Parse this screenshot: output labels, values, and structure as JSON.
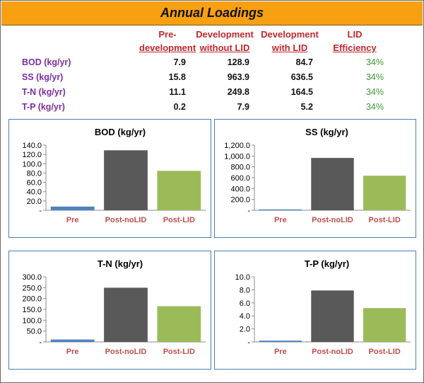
{
  "title": "Annual Loadings",
  "table": {
    "headers": [
      {
        "line1": "Pre-",
        "line2": "development"
      },
      {
        "line1": "Development",
        "line2": "without LID"
      },
      {
        "line1": "Development",
        "line2": "with LID"
      },
      {
        "line1": "LID",
        "line2": "Efficiency"
      }
    ],
    "rows": [
      {
        "label": "BOD (kg/yr)",
        "pre": "7.9",
        "no_lid": "128.9",
        "with_lid": "84.7",
        "efficiency": "34%"
      },
      {
        "label": "SS (kg/yr)",
        "pre": "15.8",
        "no_lid": "963.9",
        "with_lid": "636.5",
        "efficiency": "34%"
      },
      {
        "label": "T-N (kg/yr)",
        "pre": "11.1",
        "no_lid": "249.8",
        "with_lid": "164.5",
        "efficiency": "34%"
      },
      {
        "label": "T-P (kg/yr)",
        "pre": "0.2",
        "no_lid": "7.9",
        "with_lid": "5.2",
        "efficiency": "34%"
      }
    ]
  },
  "colors": {
    "title_bg": "#f7a012",
    "header_text": "#c0282d",
    "row_label": "#7b2fa3",
    "efficiency": "#3d9a39",
    "category_label": "#c0504d",
    "panel_border": "#4a7eb6"
  },
  "chart_data": [
    {
      "type": "bar",
      "title": "BOD (kg/yr)",
      "categories": [
        "Pre",
        "Post-noLID",
        "Post-LID"
      ],
      "values": [
        7.9,
        128.9,
        84.7
      ],
      "bar_colors": [
        "#4f81bd",
        "#595959",
        "#9bbb59"
      ],
      "ylim": [
        0,
        140
      ],
      "yticks": [
        0,
        20,
        40,
        60,
        80,
        100,
        120,
        140
      ],
      "ytick_labels": [
        "-",
        "20.0",
        "40.0",
        "60.0",
        "80.0",
        "100.0",
        "120.0",
        "140.0"
      ],
      "grid": false,
      "legend": false
    },
    {
      "type": "bar",
      "title": "SS (kg/yr)",
      "categories": [
        "Pre",
        "Post-noLID",
        "Post-LID"
      ],
      "values": [
        15.8,
        963.9,
        636.5
      ],
      "bar_colors": [
        "#4f81bd",
        "#595959",
        "#9bbb59"
      ],
      "ylim": [
        0,
        1200
      ],
      "yticks": [
        0,
        200,
        400,
        600,
        800,
        1000,
        1200
      ],
      "ytick_labels": [
        "-",
        "200.0",
        "400.0",
        "600.0",
        "800.0",
        "1,000.0",
        "1,200.0"
      ],
      "grid": false,
      "legend": false
    },
    {
      "type": "bar",
      "title": "T-N (kg/yr)",
      "categories": [
        "Pre",
        "Post-noLID",
        "Post-LID"
      ],
      "values": [
        11.1,
        249.8,
        164.5
      ],
      "bar_colors": [
        "#4f81bd",
        "#595959",
        "#9bbb59"
      ],
      "ylim": [
        0,
        300
      ],
      "yticks": [
        0,
        50,
        100,
        150,
        200,
        250,
        300
      ],
      "ytick_labels": [
        "-",
        "50.0",
        "100.0",
        "150.0",
        "200.0",
        "250.0",
        "300.0"
      ],
      "grid": false,
      "legend": false
    },
    {
      "type": "bar",
      "title": "T-P (kg/yr)",
      "categories": [
        "Pre",
        "Post-noLID",
        "Post-LID"
      ],
      "values": [
        0.2,
        7.9,
        5.2
      ],
      "bar_colors": [
        "#4f81bd",
        "#595959",
        "#9bbb59"
      ],
      "ylim": [
        0,
        10
      ],
      "yticks": [
        0,
        2,
        4,
        6,
        8,
        10
      ],
      "ytick_labels": [
        "-",
        "2.0",
        "4.0",
        "6.0",
        "8.0",
        "10.0"
      ],
      "grid": false,
      "legend": false
    }
  ]
}
